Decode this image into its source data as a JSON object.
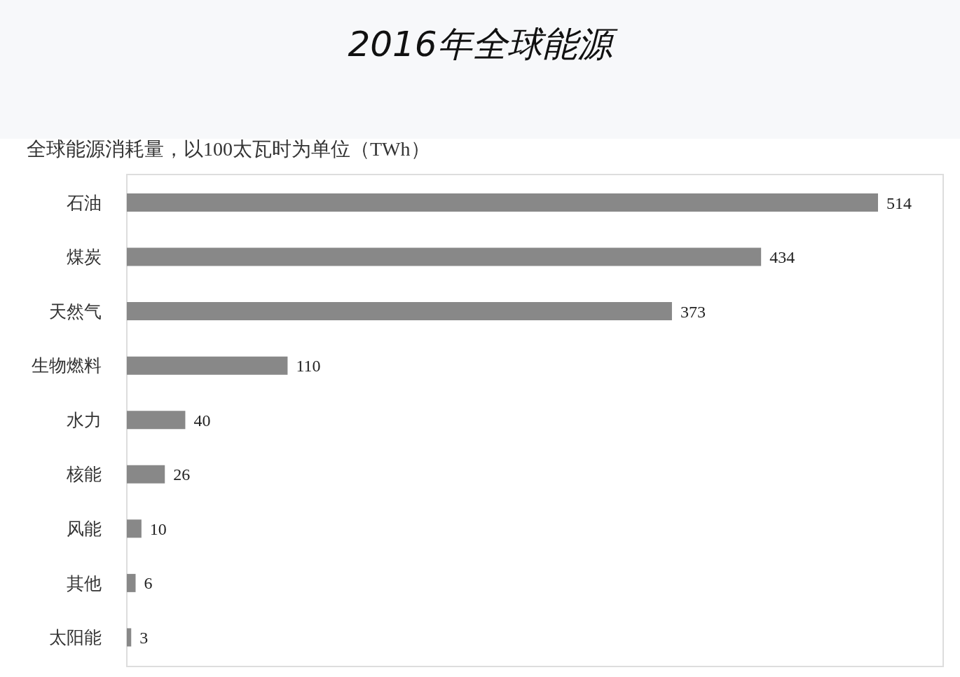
{
  "chart_data": {
    "type": "bar",
    "orientation": "horizontal",
    "title": "2016年全球能源",
    "subtitle": "全球能源消耗量，以100太瓦时为单位（TWh）",
    "categories": [
      "石油",
      "煤炭",
      "天然气",
      "生物燃料",
      "水力",
      "核能",
      "风能",
      "其他",
      "太阳能"
    ],
    "values": [
      514,
      434,
      373,
      110,
      40,
      26,
      10,
      6,
      3
    ],
    "color": "#888888",
    "tick_labels": "y",
    "data_labels": true
  }
}
